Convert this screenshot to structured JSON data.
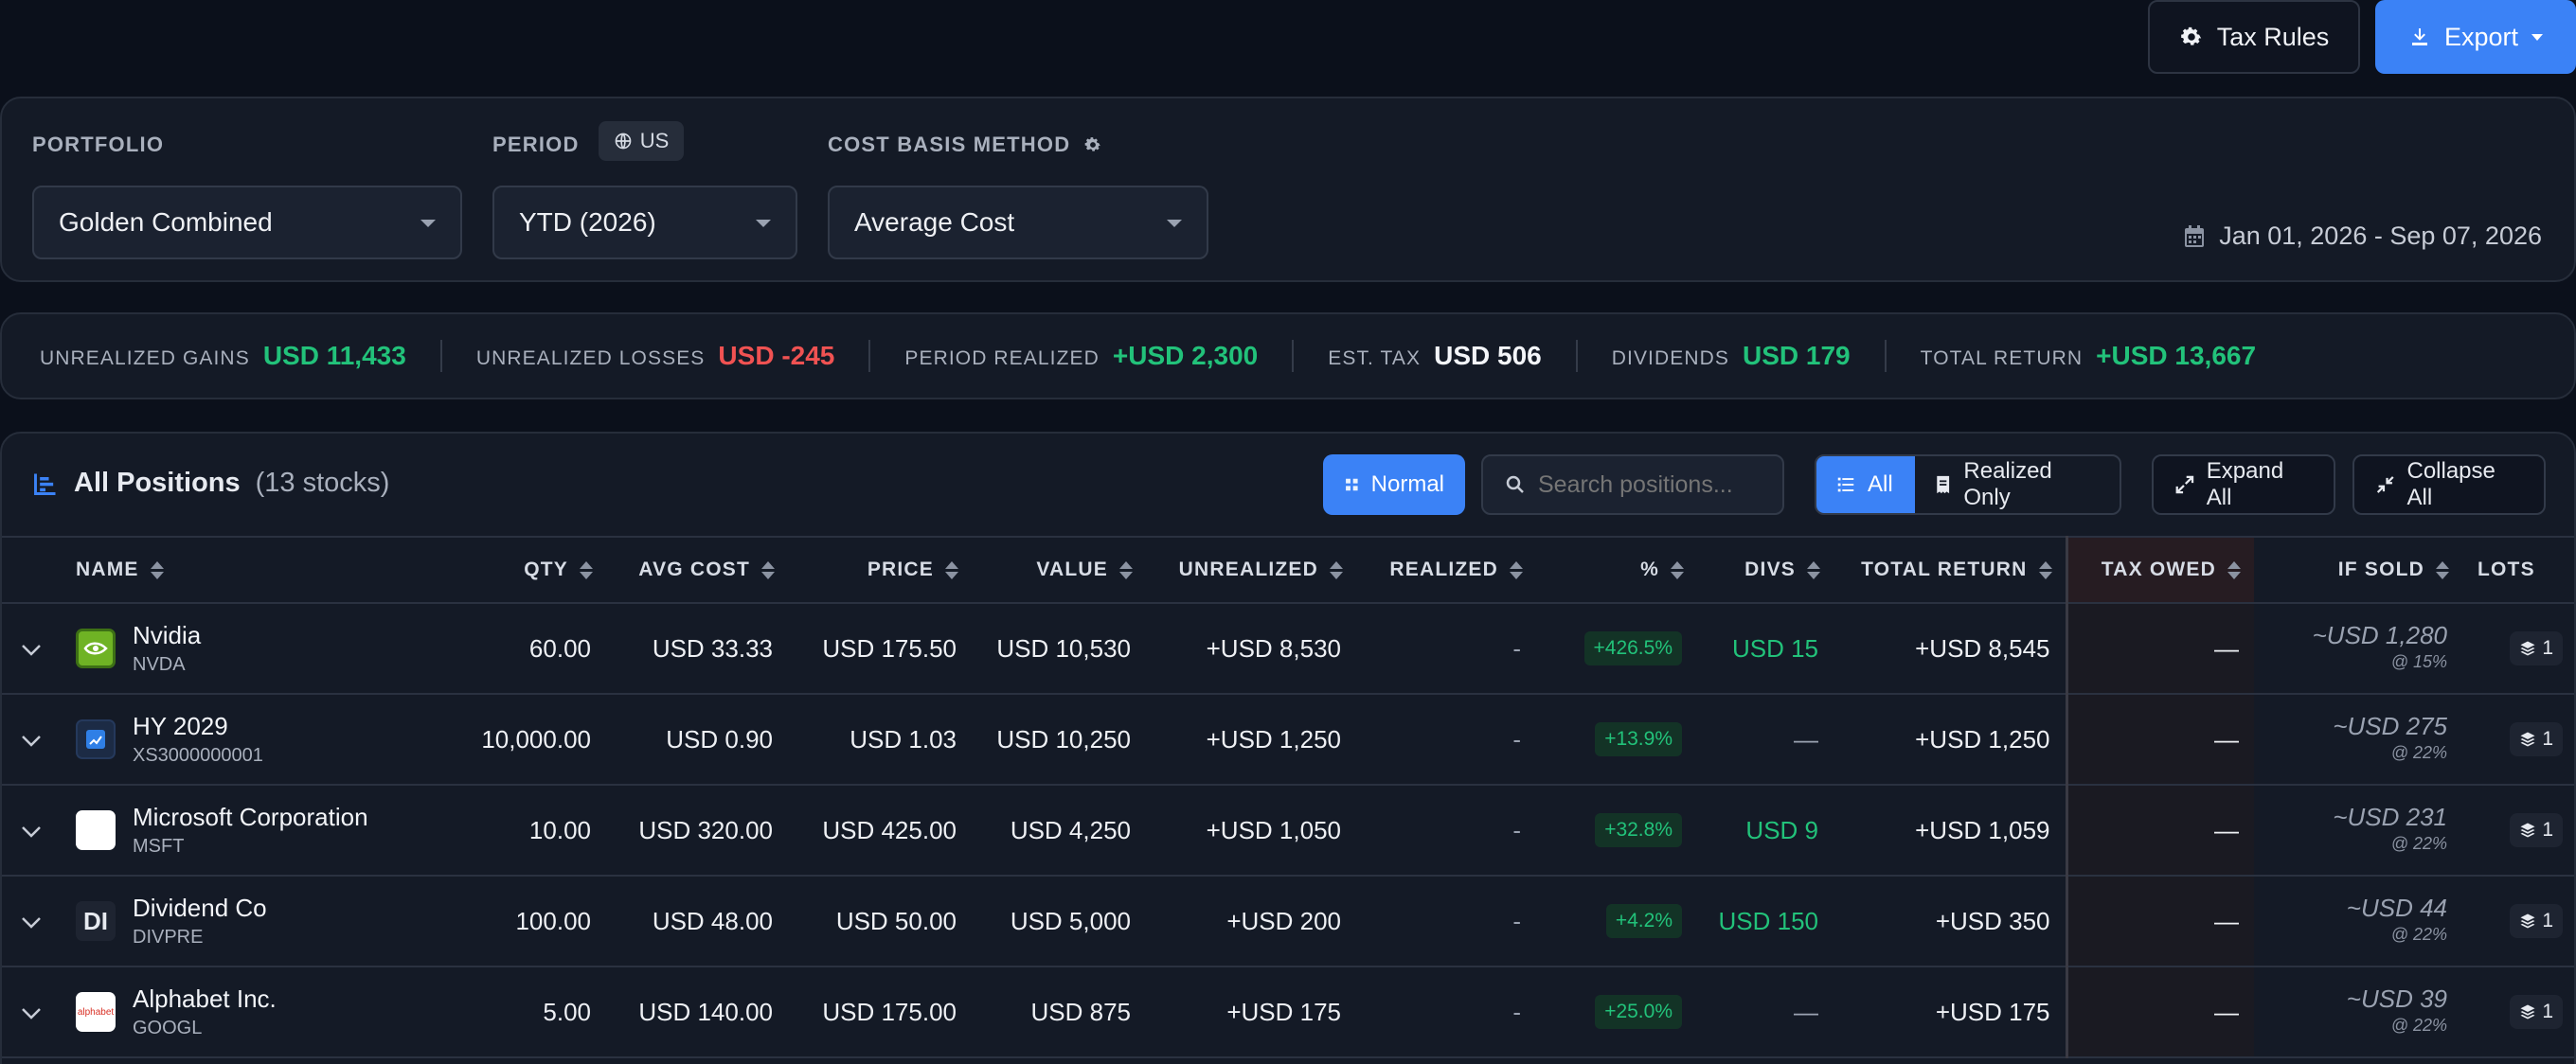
{
  "toolbar": {
    "tax_rules_label": "Tax Rules",
    "export_label": "Export"
  },
  "filters": {
    "portfolio_label": "PORTFOLIO",
    "portfolio_value": "Golden Combined",
    "period_label": "PERIOD",
    "region_chip": "US",
    "period_value": "YTD (2026)",
    "cost_basis_label": "COST BASIS METHOD",
    "cost_basis_value": "Average Cost",
    "date_range": "Jan 01, 2026 - Sep 07, 2026"
  },
  "summary": [
    {
      "label": "UNREALIZED GAINS",
      "value": "USD 11,433",
      "tone": "green"
    },
    {
      "label": "UNREALIZED LOSSES",
      "value": "USD -245",
      "tone": "red"
    },
    {
      "label": "PERIOD REALIZED",
      "value": "+USD 2,300",
      "tone": "green"
    },
    {
      "label": "EST. TAX",
      "value": "USD 506",
      "tone": "white"
    },
    {
      "label": "DIVIDENDS",
      "value": "USD 179",
      "tone": "green"
    },
    {
      "label": "TOTAL RETURN",
      "value": "+USD 13,667",
      "tone": "green"
    }
  ],
  "positions": {
    "title": "All Positions",
    "count": "(13 stocks)",
    "normal_label": "Normal",
    "search_placeholder": "Search positions...",
    "filter_all": "All",
    "filter_realized": "Realized Only",
    "expand_all": "Expand All",
    "collapse_all": "Collapse All"
  },
  "table": {
    "headers": [
      "NAME",
      "QTY",
      "AVG COST",
      "PRICE",
      "VALUE",
      "UNREALIZED",
      "REALIZED",
      "%",
      "DIVS",
      "TOTAL RETURN",
      "TAX OWED",
      "IF SOLD",
      "LOTS"
    ],
    "rows": [
      {
        "name": "Nvidia",
        "ticker": "NVDA",
        "logo": "nvidia-logo",
        "qty": "60.00",
        "avg_cost": "USD 33.33",
        "price": "USD 175.50",
        "value": "USD 10,530",
        "unrealized": "+USD 8,530",
        "realized": "-",
        "pct": "+426.5%",
        "divs": "USD 15",
        "total_return": "+USD 8,545",
        "tax_owed": "—",
        "if_sold": "~USD 1,280",
        "if_sold_rate": "@ 15%",
        "lots": "1"
      },
      {
        "name": "HY 2029",
        "ticker": "XS3000000001",
        "logo": "bond-chart-logo",
        "qty": "10,000.00",
        "avg_cost": "USD 0.90",
        "price": "USD 1.03",
        "value": "USD 10,250",
        "unrealized": "+USD 1,250",
        "realized": "-",
        "pct": "+13.9%",
        "divs": "—",
        "total_return": "+USD 1,250",
        "tax_owed": "—",
        "if_sold": "~USD 275",
        "if_sold_rate": "@ 22%",
        "lots": "1"
      },
      {
        "name": "Microsoft Corporation",
        "ticker": "MSFT",
        "logo": "microsoft-logo",
        "qty": "10.00",
        "avg_cost": "USD 320.00",
        "price": "USD 425.00",
        "value": "USD 4,250",
        "unrealized": "+USD 1,050",
        "realized": "-",
        "pct": "+32.8%",
        "divs": "USD 9",
        "total_return": "+USD 1,059",
        "tax_owed": "—",
        "if_sold": "~USD 231",
        "if_sold_rate": "@ 22%",
        "lots": "1"
      },
      {
        "name": "Dividend Co",
        "ticker": "DIVPRE",
        "logo": "initials-logo",
        "logo_text": "DI",
        "qty": "100.00",
        "avg_cost": "USD 48.00",
        "price": "USD 50.00",
        "value": "USD 5,000",
        "unrealized": "+USD 200",
        "realized": "-",
        "pct": "+4.2%",
        "divs": "USD 150",
        "total_return": "+USD 350",
        "tax_owed": "—",
        "if_sold": "~USD 44",
        "if_sold_rate": "@ 22%",
        "lots": "1"
      },
      {
        "name": "Alphabet Inc.",
        "ticker": "GOOGL",
        "logo": "alphabet-logo",
        "logo_text": "alphabet",
        "qty": "5.00",
        "avg_cost": "USD 140.00",
        "price": "USD 175.00",
        "value": "USD 875",
        "unrealized": "+USD 175",
        "realized": "-",
        "pct": "+25.0%",
        "divs": "—",
        "total_return": "+USD 175",
        "tax_owed": "—",
        "if_sold": "~USD 39",
        "if_sold_rate": "@ 22%",
        "lots": "1"
      }
    ]
  },
  "colors": {
    "accent": "#3b82f6",
    "positive": "#22c27a",
    "negative": "#f05252",
    "background": "#0b101b",
    "panel": "#141a26"
  }
}
